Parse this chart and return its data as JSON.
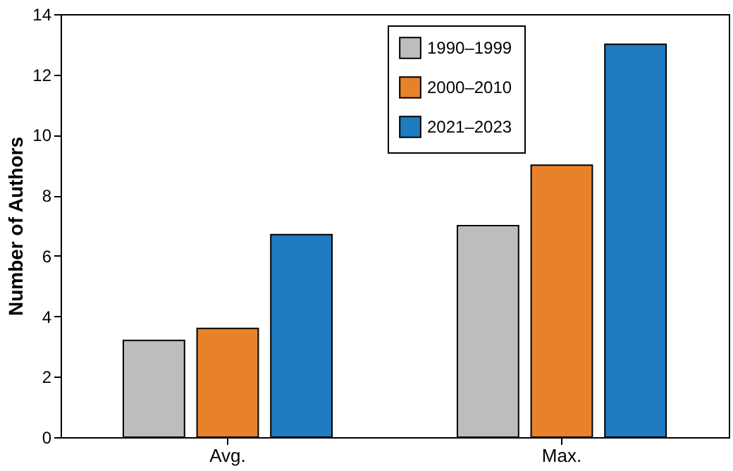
{
  "chart_data": {
    "type": "bar",
    "ylabel": "Number of Authors",
    "categories": [
      "Avg.",
      "Max."
    ],
    "series": [
      {
        "name": "1990–1999",
        "color": "#bdbdbd",
        "values": [
          3.2,
          7
        ]
      },
      {
        "name": "2000–2010",
        "color": "#e8822a",
        "values": [
          3.6,
          9
        ]
      },
      {
        "name": "2021–2023",
        "color": "#1f7bbf",
        "values": [
          6.7,
          13
        ]
      }
    ],
    "ylim": [
      0,
      14
    ],
    "yticks": [
      0,
      2,
      4,
      6,
      8,
      10,
      12,
      14
    ],
    "grid": false,
    "legend": "top right"
  }
}
